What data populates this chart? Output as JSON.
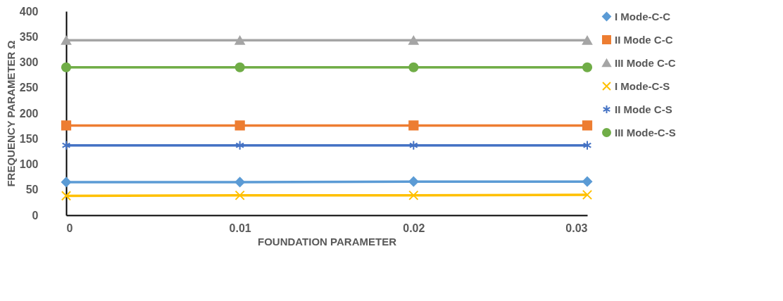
{
  "chart_data": {
    "type": "line",
    "xlabel": "FOUNDATION PARAMETER",
    "ylabel": "FREQUENCY PARAMETER Ω",
    "x": [
      0,
      0.01,
      0.02,
      0.03
    ],
    "xlim": [
      0,
      0.03
    ],
    "xticks": [
      0,
      0.01,
      0.02,
      0.03
    ],
    "ylim": [
      0,
      400
    ],
    "yticks": [
      0,
      50,
      100,
      150,
      200,
      250,
      300,
      350,
      400
    ],
    "grid": false,
    "legend": "right",
    "series": [
      {
        "name": "I Mode-C-C",
        "color": "#5b9bd5",
        "marker": "diamond",
        "values": [
          65,
          65,
          66,
          66
        ]
      },
      {
        "name": "II Mode C-C",
        "color": "#ed7d31",
        "marker": "square",
        "values": [
          176,
          176,
          176,
          176
        ]
      },
      {
        "name": "III Mode C-C",
        "color": "#a5a5a5",
        "marker": "triangle",
        "values": [
          343,
          343,
          343,
          343
        ]
      },
      {
        "name": "I Mode-C-S",
        "color": "#ffc000",
        "marker": "cross",
        "values": [
          38,
          39,
          39,
          40
        ]
      },
      {
        "name": "II Mode C-S",
        "color": "#4472c4",
        "marker": "cross",
        "values": [
          137,
          137,
          137,
          137
        ]
      },
      {
        "name": "III Mode-C-S",
        "color": "#70ad47",
        "marker": "circle",
        "values": [
          290,
          290,
          290,
          290
        ]
      }
    ]
  }
}
